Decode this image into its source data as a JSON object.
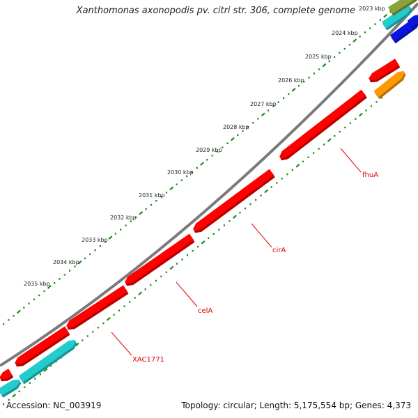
{
  "title": "Xanthomonas axonopodis pv. citri str. 306, complete genome",
  "accession": "Accession: NC_003919",
  "summary": "Topology: circular; Length: 5,175,554 bp; Genes: 4,373",
  "colors": {
    "backbone": "#7a7a7a",
    "ticks": "#1e8a1e",
    "gene_red": "#ff0000",
    "gene_cyan": "#22cccc",
    "gene_blue": "#0a16e0",
    "gene_orange": "#ff9900",
    "gene_olive": "#8aa23c",
    "label": "#dd0000"
  },
  "kbp_ticks": [
    "2023 kbp",
    "2024 kbp",
    "2025 kbp",
    "2026 kbp",
    "2027 kbp",
    "2028 kbp",
    "2029 kbp",
    "2030 kbp",
    "2031 kbp",
    "2032 kbp",
    "2033 kbp",
    "2034 kbp",
    "2035 kbp"
  ],
  "gene_labels": [
    "fhuA",
    "cirA",
    "celA",
    "XAC1771"
  ]
}
